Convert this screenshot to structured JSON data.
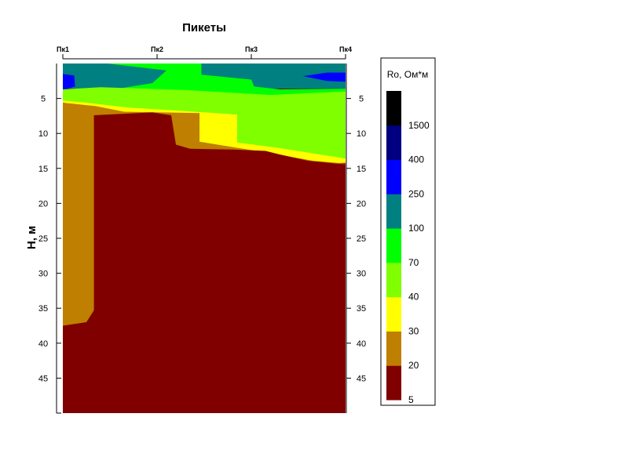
{
  "chart_data": {
    "type": "heatmap",
    "title": "Пикеты",
    "xlabel": "",
    "ylabel": "H, м",
    "x_ticks": [
      {
        "label": "Пк1",
        "pos": 0
      },
      {
        "label": "Пк2",
        "pos": 1
      },
      {
        "label": "Пк3",
        "pos": 2
      },
      {
        "label": "Пк4",
        "pos": 3
      }
    ],
    "y_ticks": [
      5,
      10,
      15,
      20,
      25,
      30,
      35,
      40,
      45
    ],
    "ylim": [
      50,
      0
    ],
    "legend": {
      "title": "Ro, Ом*м",
      "placement": "right",
      "breaks": [
        "5",
        "20",
        "30",
        "40",
        "70",
        "100",
        "250",
        "400",
        "1500"
      ],
      "colors": [
        "#800000",
        "#BF7F00",
        "#FFFF00",
        "#7FFF00",
        "#00FF00",
        "#008080",
        "#0000FF",
        "#000080",
        "#000000"
      ]
    },
    "bands": [
      {
        "range": "250-400",
        "color": "#008080",
        "points": [
          [
            0,
            0
          ],
          [
            3,
            0
          ],
          [
            3,
            3.6
          ],
          [
            0,
            3.6
          ]
        ]
      },
      {
        "range": "100-250",
        "color": "#00FF00",
        "points": [
          [
            0.47,
            0
          ],
          [
            1.47,
            0
          ],
          [
            1.47,
            1.6
          ],
          [
            2.0,
            2.3
          ],
          [
            2.03,
            3.3
          ],
          [
            2.3,
            3.7
          ],
          [
            3,
            3.6
          ],
          [
            3,
            4.5
          ],
          [
            2.6,
            4.8
          ],
          [
            2.2,
            5.0
          ],
          [
            1.3,
            4.2
          ],
          [
            0.4,
            4.0
          ],
          [
            0.95,
            2.8
          ],
          [
            1.1,
            1.0
          ]
        ]
      },
      {
        "range": "400-1500 (left)",
        "color": "#0000FF",
        "points": [
          [
            0,
            1.5
          ],
          [
            0.12,
            1.7
          ],
          [
            0.13,
            3.3
          ],
          [
            0,
            3.8
          ]
        ]
      },
      {
        "range": "400-1500 (right)",
        "color": "#0000FF",
        "points": [
          [
            2.55,
            1.8
          ],
          [
            2.8,
            1.3
          ],
          [
            3,
            1.3
          ],
          [
            3,
            2.6
          ],
          [
            2.8,
            2.5
          ]
        ]
      },
      {
        "range": "70-100",
        "color": "#7FFF00",
        "points": [
          [
            0,
            3.7
          ],
          [
            0.4,
            3.4
          ],
          [
            1.3,
            3.8
          ],
          [
            2.2,
            4.5
          ],
          [
            3,
            4.0
          ],
          [
            3,
            13.6
          ],
          [
            2.3,
            12.4
          ],
          [
            1.85,
            11.5
          ],
          [
            1.85,
            7.3
          ],
          [
            1.35,
            7.0
          ],
          [
            0.7,
            6.8
          ],
          [
            0.25,
            6.0
          ],
          [
            0,
            5.3
          ]
        ]
      },
      {
        "range": "40-70",
        "color": "#FFFF00",
        "points": [
          [
            0,
            5.3
          ],
          [
            0.25,
            5.6
          ],
          [
            0.7,
            6.3
          ],
          [
            1.3,
            6.8
          ],
          [
            1.85,
            7.3
          ],
          [
            1.85,
            11.3
          ],
          [
            2.3,
            12.1
          ],
          [
            3,
            13.6
          ],
          [
            3,
            14.2
          ],
          [
            2.7,
            14.3
          ],
          [
            2.2,
            12.9
          ],
          [
            1.45,
            11.2
          ],
          [
            1.45,
            7.3
          ],
          [
            0.6,
            7.2
          ],
          [
            0.35,
            6.3
          ],
          [
            0,
            5.6
          ]
        ]
      },
      {
        "range": "30-40",
        "color": "#BF7F00",
        "points": [
          [
            0,
            5.6
          ],
          [
            0.35,
            6.1
          ],
          [
            0.65,
            6.9
          ],
          [
            1.45,
            7.1
          ],
          [
            1.45,
            11.2
          ],
          [
            2.2,
            12.8
          ],
          [
            2.65,
            13.9
          ],
          [
            3,
            14.3
          ],
          [
            3,
            50
          ],
          [
            0,
            50
          ]
        ]
      },
      {
        "range": "5-20 deep",
        "color": "#800000",
        "points": [
          [
            0.33,
            7.4
          ],
          [
            0.95,
            7.0
          ],
          [
            1.15,
            7.4
          ],
          [
            1.2,
            11.6
          ],
          [
            1.35,
            12.2
          ],
          [
            1.8,
            12.3
          ],
          [
            2.15,
            12.5
          ],
          [
            2.3,
            13.0
          ],
          [
            2.6,
            13.9
          ],
          [
            2.9,
            14.3
          ],
          [
            3,
            14.4
          ],
          [
            3,
            50
          ],
          [
            0,
            50
          ],
          [
            0,
            37.5
          ],
          [
            0.25,
            37.0
          ],
          [
            0.33,
            35.3
          ]
        ]
      }
    ]
  }
}
